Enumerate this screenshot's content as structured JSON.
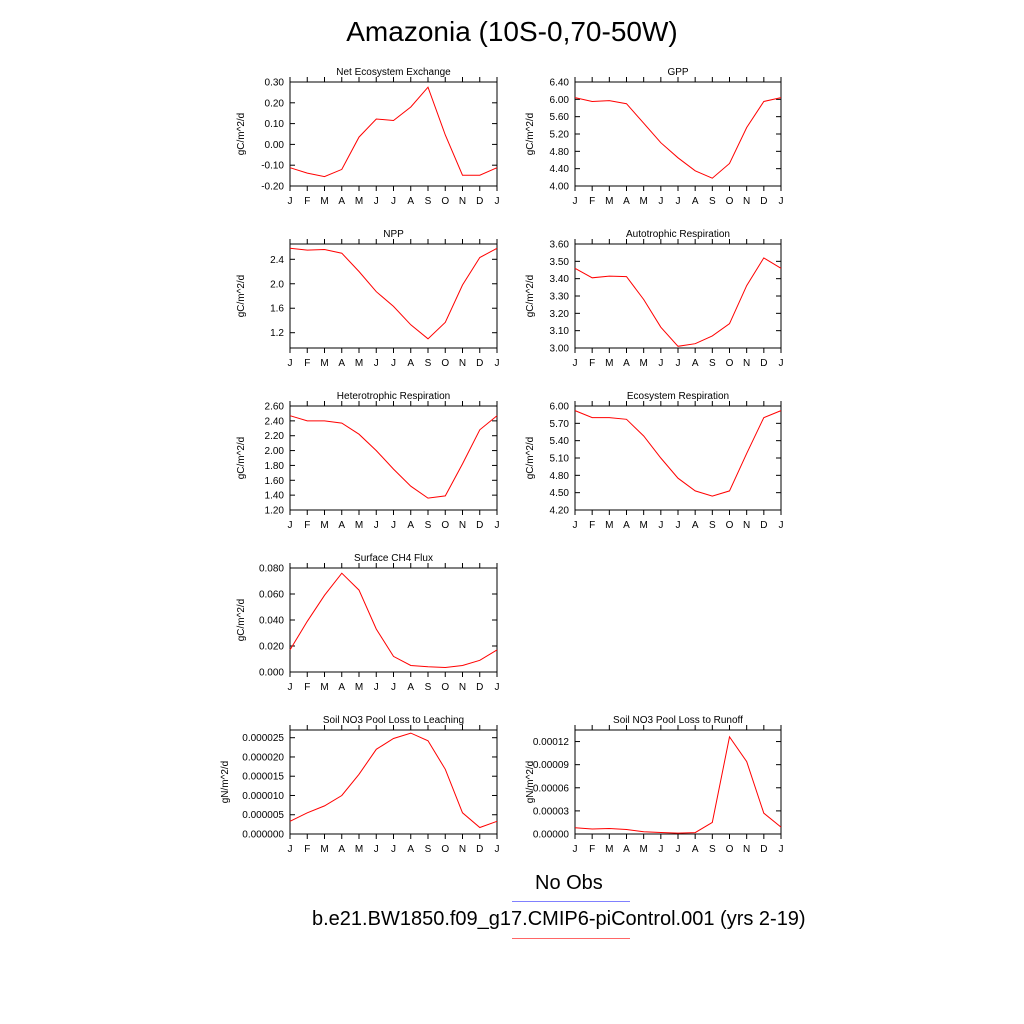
{
  "figure": {
    "title": "Amazonia (10S-0,70-50W)"
  },
  "legend": {
    "items": [
      {
        "label": "No Obs",
        "color": "#8080ff"
      },
      {
        "label": "b.e21.BW1850.f09_g17.CMIP6-piControl.001 (yrs 2-19)",
        "color": "#ff6666"
      }
    ]
  },
  "line_color": "#ff0000",
  "chart_data": [
    {
      "type": "line",
      "title": "Net Ecosystem Exchange",
      "ylabel": "gC/m^2/d",
      "categories": [
        "J",
        "F",
        "M",
        "A",
        "M",
        "J",
        "J",
        "A",
        "S",
        "O",
        "N",
        "D",
        "J"
      ],
      "ylim": [
        -0.2,
        0.3
      ],
      "yticks": [
        -0.2,
        -0.1,
        0.0,
        0.1,
        0.2,
        0.3
      ],
      "ytick_labels": [
        "-0.20",
        "-0.10",
        "0.00",
        "0.10",
        "0.20",
        "0.30"
      ],
      "series": [
        {
          "values": [
            -0.112,
            -0.138,
            -0.155,
            -0.12,
            0.035,
            0.122,
            0.115,
            0.18,
            0.275,
            0.045,
            -0.148,
            -0.148,
            -0.112
          ]
        }
      ]
    },
    {
      "type": "line",
      "title": "GPP",
      "ylabel": "gC/m^2/d",
      "categories": [
        "J",
        "F",
        "M",
        "A",
        "M",
        "J",
        "J",
        "A",
        "S",
        "O",
        "N",
        "D",
        "J"
      ],
      "ylim": [
        4.0,
        6.4
      ],
      "yticks": [
        4.0,
        4.4,
        4.8,
        5.2,
        5.6,
        6.0,
        6.4
      ],
      "ytick_labels": [
        "4.00",
        "4.40",
        "4.80",
        "5.20",
        "5.60",
        "6.00",
        "6.40"
      ],
      "series": [
        {
          "values": [
            6.04,
            5.95,
            5.97,
            5.9,
            5.45,
            5.0,
            4.65,
            4.35,
            4.18,
            4.52,
            5.35,
            5.95,
            6.04
          ]
        }
      ]
    },
    {
      "type": "line",
      "title": "NPP",
      "ylabel": "gC/m^2/d",
      "categories": [
        "J",
        "F",
        "M",
        "A",
        "M",
        "J",
        "J",
        "A",
        "S",
        "O",
        "N",
        "D",
        "J"
      ],
      "ylim": [
        0.95,
        2.65
      ],
      "yticks": [
        1.2,
        1.6,
        2.0,
        2.4
      ],
      "ytick_labels": [
        "1.2",
        "1.6",
        "2.0",
        "2.4"
      ],
      "series": [
        {
          "values": [
            2.58,
            2.55,
            2.56,
            2.5,
            2.2,
            1.87,
            1.63,
            1.33,
            1.1,
            1.37,
            1.98,
            2.43,
            2.58
          ]
        }
      ]
    },
    {
      "type": "line",
      "title": "Autotrophic Respiration",
      "ylabel": "gC/m^2/d",
      "categories": [
        "J",
        "F",
        "M",
        "A",
        "M",
        "J",
        "J",
        "A",
        "S",
        "O",
        "N",
        "D",
        "J"
      ],
      "ylim": [
        3.0,
        3.6
      ],
      "yticks": [
        3.0,
        3.1,
        3.2,
        3.3,
        3.4,
        3.5,
        3.6
      ],
      "ytick_labels": [
        "3.00",
        "3.10",
        "3.20",
        "3.30",
        "3.40",
        "3.50",
        "3.60"
      ],
      "series": [
        {
          "values": [
            3.46,
            3.405,
            3.415,
            3.412,
            3.28,
            3.12,
            3.01,
            3.025,
            3.07,
            3.14,
            3.36,
            3.52,
            3.46
          ]
        }
      ]
    },
    {
      "type": "line",
      "title": "Heterotrophic Respiration",
      "ylabel": "gC/m^2/d",
      "categories": [
        "J",
        "F",
        "M",
        "A",
        "M",
        "J",
        "J",
        "A",
        "S",
        "O",
        "N",
        "D",
        "J"
      ],
      "ylim": [
        1.2,
        2.6
      ],
      "yticks": [
        1.2,
        1.4,
        1.6,
        1.8,
        2.0,
        2.2,
        2.4,
        2.6
      ],
      "ytick_labels": [
        "1.20",
        "1.40",
        "1.60",
        "1.80",
        "2.00",
        "2.20",
        "2.40",
        "2.60"
      ],
      "series": [
        {
          "values": [
            2.47,
            2.4,
            2.4,
            2.37,
            2.22,
            2.0,
            1.75,
            1.52,
            1.36,
            1.39,
            1.82,
            2.28,
            2.47
          ]
        }
      ]
    },
    {
      "type": "line",
      "title": "Ecosystem Respiration",
      "ylabel": "gC/m^2/d",
      "categories": [
        "J",
        "F",
        "M",
        "A",
        "M",
        "J",
        "J",
        "A",
        "S",
        "O",
        "N",
        "D",
        "J"
      ],
      "ylim": [
        4.2,
        6.0
      ],
      "yticks": [
        4.2,
        4.5,
        4.8,
        5.1,
        5.4,
        5.7,
        6.0
      ],
      "ytick_labels": [
        "4.20",
        "4.50",
        "4.80",
        "5.10",
        "5.40",
        "5.70",
        "6.00"
      ],
      "series": [
        {
          "values": [
            5.92,
            5.8,
            5.8,
            5.77,
            5.48,
            5.1,
            4.75,
            4.53,
            4.44,
            4.53,
            5.18,
            5.8,
            5.92
          ]
        }
      ]
    },
    {
      "type": "line",
      "title": "Surface CH4 Flux",
      "ylabel": "gC/m^2/d",
      "categories": [
        "J",
        "F",
        "M",
        "A",
        "M",
        "J",
        "J",
        "A",
        "S",
        "O",
        "N",
        "D",
        "J"
      ],
      "ylim": [
        0.0,
        0.08
      ],
      "yticks": [
        0.0,
        0.02,
        0.04,
        0.06,
        0.08
      ],
      "ytick_labels": [
        "0.000",
        "0.020",
        "0.040",
        "0.060",
        "0.080"
      ],
      "series": [
        {
          "values": [
            0.017,
            0.039,
            0.059,
            0.076,
            0.063,
            0.033,
            0.012,
            0.005,
            0.004,
            0.0035,
            0.005,
            0.009,
            0.017
          ]
        }
      ]
    },
    {
      "type": "line",
      "title": "Soil NO3 Pool Loss to Leaching",
      "ylabel": "gN/m^2/d",
      "categories": [
        "J",
        "F",
        "M",
        "A",
        "M",
        "J",
        "J",
        "A",
        "S",
        "O",
        "N",
        "D",
        "J"
      ],
      "ylim": [
        0.0,
        2.7e-05
      ],
      "yticks": [
        0.0,
        5e-06,
        1e-05,
        1.5e-05,
        2e-05,
        2.5e-05
      ],
      "ytick_labels": [
        "0.000000",
        "0.000005",
        "0.000010",
        "0.000015",
        "0.000020",
        "0.000025"
      ],
      "series": [
        {
          "values": [
            3.3e-06,
            5.5e-06,
            7.3e-06,
            1e-05,
            1.55e-05,
            2.2e-05,
            2.48e-05,
            2.62e-05,
            2.42e-05,
            1.68e-05,
            5.5e-06,
            1.7e-06,
            3.3e-06
          ]
        }
      ]
    },
    {
      "type": "line",
      "title": "Soil NO3 Pool Loss to Runoff",
      "ylabel": "gN/m^2/d",
      "categories": [
        "J",
        "F",
        "M",
        "A",
        "M",
        "J",
        "J",
        "A",
        "S",
        "O",
        "N",
        "D",
        "J"
      ],
      "ylim": [
        0.0,
        0.000135
      ],
      "yticks": [
        0.0,
        3e-05,
        6e-05,
        9e-05,
        0.00012
      ],
      "ytick_labels": [
        "0.00000",
        "0.00003",
        "0.00006",
        "0.00009",
        "0.00012"
      ],
      "series": [
        {
          "values": [
            8e-06,
            6.5e-06,
            7.2e-06,
            5.8e-06,
            3e-06,
            2e-06,
            1.2e-06,
            1.8e-06,
            1.5e-05,
            0.000126,
            9.4e-05,
            2.7e-05,
            9e-06
          ]
        }
      ]
    }
  ]
}
